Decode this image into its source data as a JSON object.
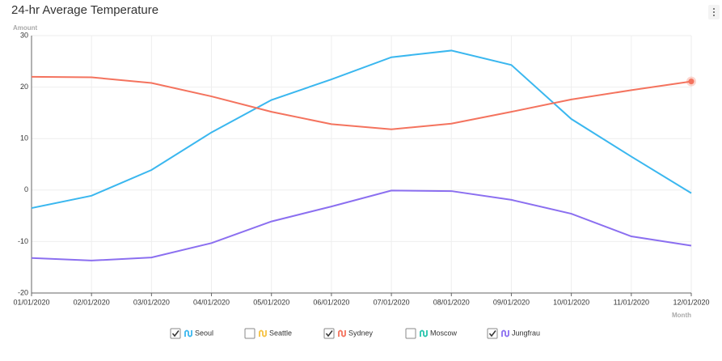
{
  "chart_data": {
    "type": "line",
    "title": "24-hr Average Temperature",
    "y_label": "Amount",
    "x_label": "Month",
    "categories": [
      "01/01/2020",
      "02/01/2020",
      "03/01/2020",
      "04/01/2020",
      "05/01/2020",
      "06/01/2020",
      "07/01/2020",
      "08/01/2020",
      "09/01/2020",
      "10/01/2020",
      "11/01/2020",
      "12/01/2020"
    ],
    "series": [
      {
        "name": "Seoul",
        "color": "#3ab7ef",
        "checked": true,
        "values": [
          -3.5,
          -1.1,
          3.9,
          11.2,
          17.5,
          21.5,
          25.8,
          27.1,
          24.3,
          13.8,
          6.5,
          -0.6
        ]
      },
      {
        "name": "Seattle",
        "color": "#f5c242",
        "checked": false
      },
      {
        "name": "Sydney",
        "color": "#f4735e",
        "checked": true,
        "values": [
          22.0,
          21.9,
          20.8,
          18.2,
          15.2,
          12.8,
          11.8,
          12.9,
          15.2,
          17.6,
          19.4,
          21.1
        ]
      },
      {
        "name": "Moscow",
        "color": "#26c4ad",
        "checked": false
      },
      {
        "name": "Jungfrau",
        "color": "#8b6ff0",
        "checked": true,
        "values": [
          -13.2,
          -13.7,
          -13.1,
          -10.3,
          -6.1,
          -3.2,
          -0.1,
          -0.2,
          -1.9,
          -4.6,
          -9.0,
          -10.8
        ]
      }
    ],
    "ylim": [
      -20,
      30
    ],
    "yticks": [
      -20,
      -10,
      0,
      10,
      20,
      30
    ],
    "grid": true,
    "highlight": {
      "series": 2,
      "index": 11
    }
  }
}
